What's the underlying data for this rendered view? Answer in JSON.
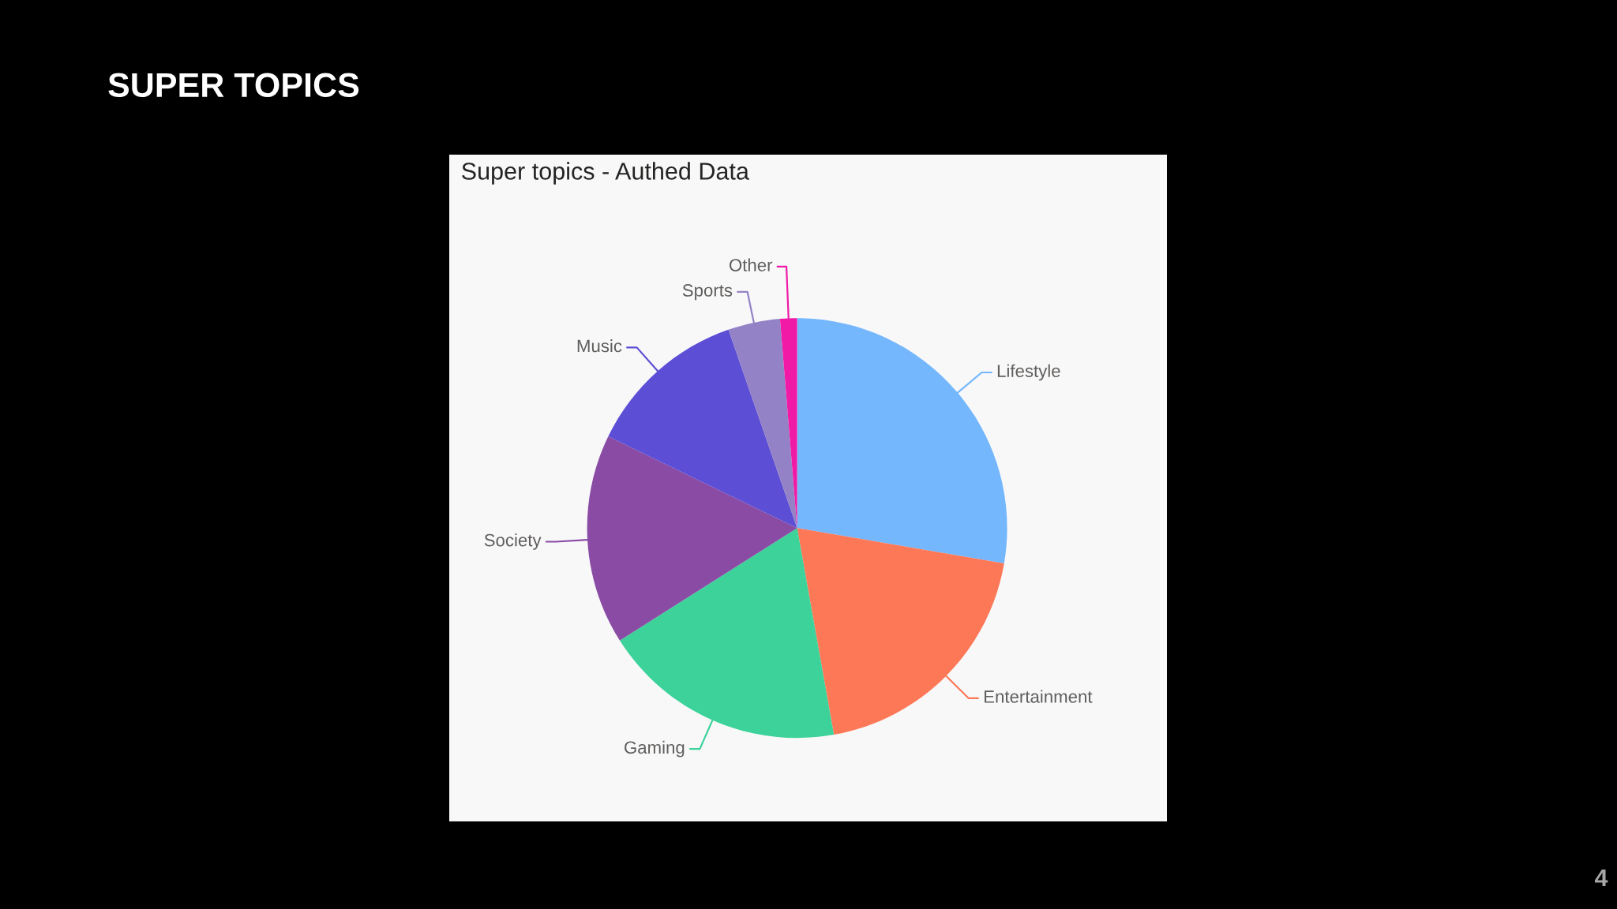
{
  "chart_data": {
    "type": "pie",
    "title": "SUPER TOPICS",
    "subtitle": "Super topics - Authed Data",
    "categories": [
      "Lifestyle",
      "Entertainment",
      "Gaming",
      "Society",
      "Music",
      "Sports",
      "Other"
    ],
    "values": [
      27.7,
      19.5,
      18.8,
      16.2,
      12.5,
      4.0,
      1.3
    ],
    "colors": [
      "#74b7fd",
      "#fd7857",
      "#3cd29a",
      "#8a4ba5",
      "#5c4ed5",
      "#9482c6",
      "#f01aa6"
    ],
    "annotations": [
      "4"
    ]
  }
}
